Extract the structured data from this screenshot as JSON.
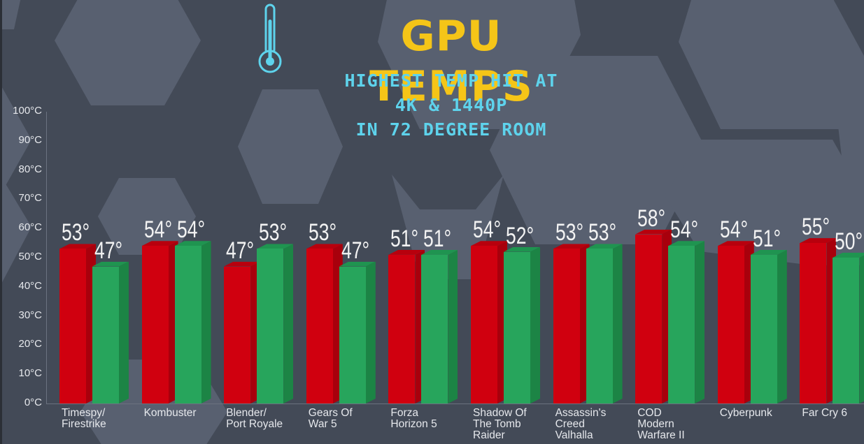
{
  "title": "GPU TEMPS",
  "subtitle_lines": [
    "HIGHEST TEMP HIT AT",
    "4K & 1440P",
    "IN 72 DEGREE ROOM"
  ],
  "icon": "thermometer-icon",
  "colors": {
    "background": "#434a57",
    "hexagon": "#586070",
    "title": "#f5c518",
    "subtitle": "#5ed3ec",
    "series_red_front": "#d0000f",
    "series_red_side": "#a8000c",
    "series_red_top": "#b8000d",
    "series_green_front": "#27a55c",
    "series_green_side": "#1c8445",
    "series_green_top": "#1f9450"
  },
  "chart_data": {
    "type": "bar",
    "title": "GPU TEMPS",
    "subtitle": "HIGHEST TEMP HIT AT 4K & 1440P IN 72 DEGREE ROOM",
    "xlabel": "",
    "ylabel": "",
    "ylim": [
      0,
      100
    ],
    "y_ticks": [
      "0°C",
      "10°C",
      "20°C",
      "30°C",
      "40°C",
      "50°C",
      "60°C",
      "70°C",
      "80°C",
      "90°C",
      "100°C"
    ],
    "categories": [
      "Timespy/\nFirestrike",
      "Kombuster",
      "Blender/\nPort Royale",
      "Gears Of\nWar 5",
      "Forza\nHorizon 5",
      "Shadow Of\nThe Tomb\nRaider",
      "Assassin's\nCreed\nValhalla",
      "COD\nModern\nWarfare II",
      "Cyberpunk",
      "Far Cry 6"
    ],
    "series": [
      {
        "name": "red",
        "color": "#d0000f",
        "values": [
          53,
          54,
          47,
          53,
          51,
          54,
          53,
          58,
          54,
          55
        ]
      },
      {
        "name": "green",
        "color": "#27a55c",
        "values": [
          47,
          54,
          53,
          47,
          51,
          52,
          53,
          54,
          51,
          50
        ]
      }
    ],
    "value_suffix": "°",
    "grid": false,
    "legend": "none",
    "bar_style": "3d"
  }
}
